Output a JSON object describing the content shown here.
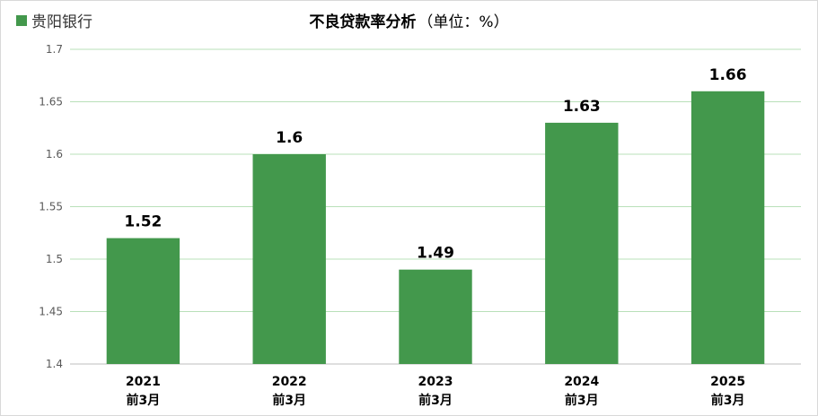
{
  "colors": {
    "bar": "#43984c",
    "grid": "#b9e0b9",
    "axis": "#bfbfbf"
  },
  "legend": {
    "label": "贵阳银行",
    "icon": "square-swatch"
  },
  "title": {
    "main": "不良贷款率分析",
    "unit": "（单位：%）"
  },
  "chart_data": {
    "type": "bar",
    "title": "不良贷款率分析（单位：%）",
    "categories": [
      [
        "2021",
        "前3月"
      ],
      [
        "2022",
        "前3月"
      ],
      [
        "2023",
        "前3月"
      ],
      [
        "2024",
        "前3月"
      ],
      [
        "2025",
        "前3月"
      ]
    ],
    "series": [
      {
        "name": "贵阳银行",
        "values": [
          1.52,
          1.6,
          1.49,
          1.63,
          1.66
        ],
        "labels": [
          "1.52",
          "1.6",
          "1.49",
          "1.63",
          "1.66"
        ]
      }
    ],
    "yticks": [
      "1.4",
      "1.45",
      "1.5",
      "1.55",
      "1.6",
      "1.65",
      "1.7"
    ],
    "ylim": [
      1.4,
      1.7
    ],
    "grid": true,
    "legend_position": "top-left"
  }
}
